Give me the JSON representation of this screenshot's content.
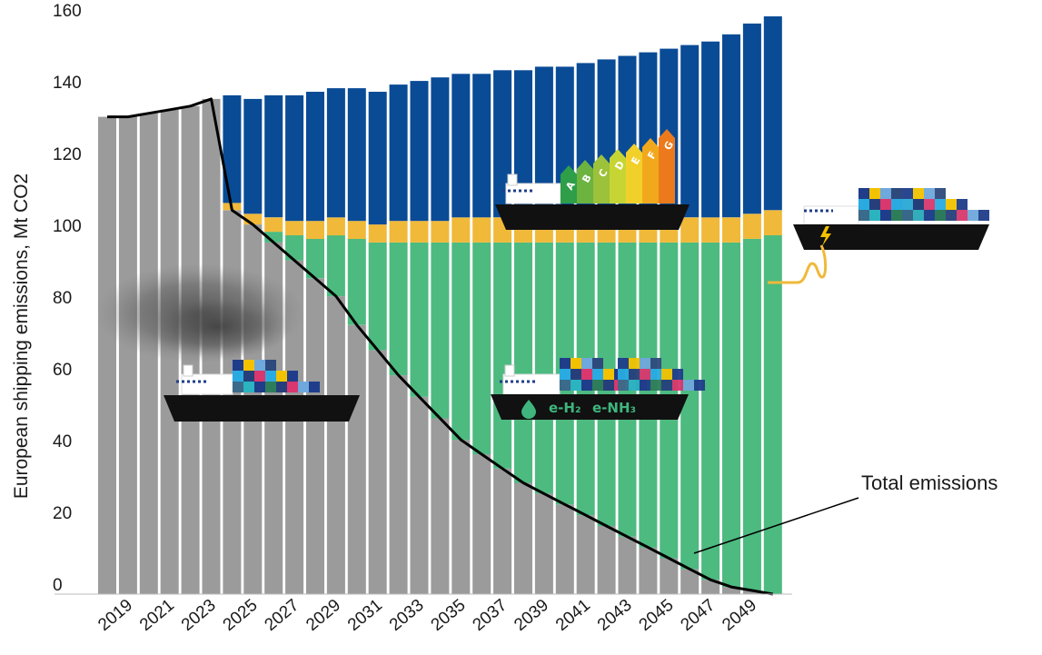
{
  "chart_data": {
    "type": "bar",
    "stacked": true,
    "title": "",
    "ylabel": "European shipping emissions, Mt CO2",
    "xlabel": "",
    "ylim": [
      0,
      160
    ],
    "yticks": [
      0,
      20,
      40,
      60,
      80,
      100,
      120,
      140,
      160
    ],
    "grid": false,
    "categories": [
      "2018",
      "2019",
      "2020",
      "2021",
      "2022",
      "2023",
      "2024",
      "2025",
      "2026",
      "2027",
      "2028",
      "2029",
      "2030",
      "2031",
      "2032",
      "2033",
      "2034",
      "2035",
      "2036",
      "2037",
      "2038",
      "2039",
      "2040",
      "2041",
      "2042",
      "2043",
      "2044",
      "2045",
      "2046",
      "2047",
      "2048",
      "2049",
      "2050"
    ],
    "xtick_labels": [
      "2019",
      "2021",
      "2023",
      "2025",
      "2027",
      "2029",
      "2031",
      "2033",
      "2035",
      "2037",
      "2039",
      "2041",
      "2043",
      "2045",
      "2047",
      "2049"
    ],
    "series": [
      {
        "color": "#9b9b9b",
        "values": [
          133,
          133,
          134,
          135,
          136,
          138,
          107,
          103,
          98,
          93,
          88,
          83,
          75,
          68,
          61,
          55,
          49,
          43,
          39,
          35,
          31,
          28,
          25,
          22,
          19,
          16,
          13,
          10,
          7,
          4,
          2,
          1,
          0
        ]
      },
      {
        "color": "#4dba80",
        "values": [
          0,
          0,
          0,
          0,
          0,
          0,
          0,
          0,
          3,
          7,
          11,
          17,
          24,
          30,
          37,
          43,
          49,
          55,
          59,
          63,
          67,
          70,
          73,
          76,
          79,
          82,
          85,
          88,
          91,
          94,
          96,
          98,
          100
        ]
      },
      {
        "color": "#f0b93a",
        "values": [
          0,
          0,
          0,
          0,
          0,
          0,
          2,
          3,
          4,
          4,
          5,
          5,
          5,
          5,
          6,
          6,
          6,
          7,
          7,
          7,
          7,
          7,
          7,
          7,
          7,
          7,
          7,
          7,
          7,
          7,
          7,
          7,
          7
        ]
      },
      {
        "color": "#0a4b96",
        "values": [
          0,
          0,
          0,
          0,
          0,
          0,
          30,
          32,
          34,
          35,
          36,
          36,
          37,
          37,
          38,
          39,
          40,
          40,
          40,
          41,
          41,
          42,
          42,
          43,
          44,
          45,
          46,
          47,
          48,
          49,
          51,
          53,
          54
        ]
      }
    ],
    "line": {
      "color": "#000000",
      "values": [
        133,
        133,
        134,
        135,
        136,
        138,
        107,
        103,
        98,
        93,
        88,
        83,
        75,
        68,
        61,
        55,
        49,
        43,
        39,
        35,
        31,
        28,
        25,
        22,
        19,
        16,
        13,
        10,
        7,
        4,
        2,
        1,
        0
      ]
    },
    "annotations": [
      {
        "text": "Total emissions"
      }
    ],
    "ship_labels": {
      "hydrogen": "e-H₂",
      "ammonia": "e-NH₃",
      "grades": [
        "A",
        "B",
        "C",
        "D",
        "E",
        "F",
        "G"
      ]
    }
  }
}
